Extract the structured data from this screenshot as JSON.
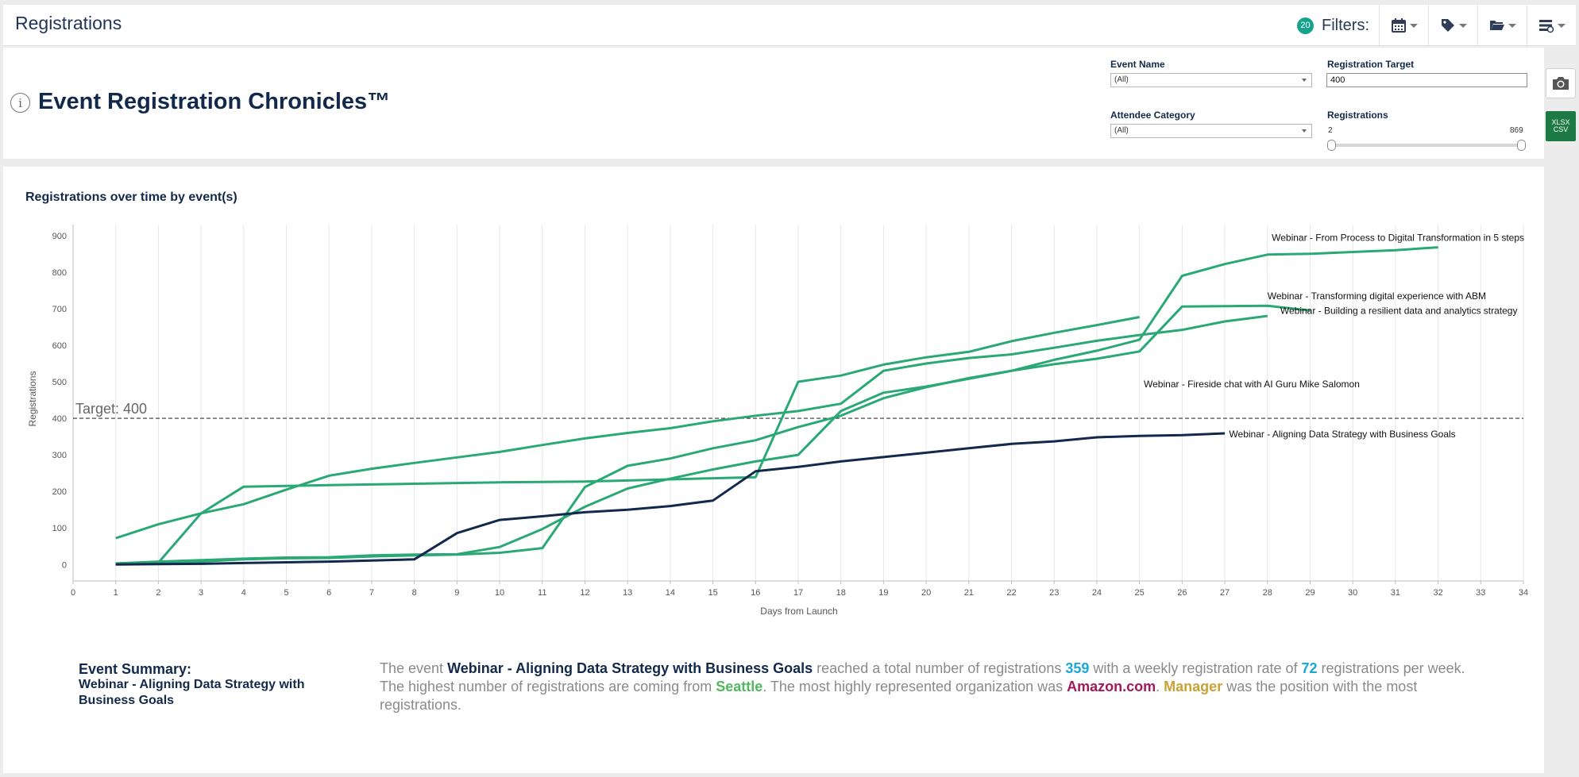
{
  "topbar": {
    "title": "Registrations",
    "filter_count": "20",
    "filters_label": "Filters:",
    "buttons": [
      {
        "name": "calendar-filter-button",
        "icon": "calendar-icon"
      },
      {
        "name": "tag-filter-button",
        "icon": "tag-icon"
      },
      {
        "name": "folder-filter-button",
        "icon": "folder-icon"
      },
      {
        "name": "settings-filter-button",
        "icon": "list-settings-icon"
      }
    ]
  },
  "header": {
    "title": "Event Registration Chronicles™",
    "controls": {
      "event_name_label": "Event Name",
      "event_name_value": "(All)",
      "attendee_category_label": "Attendee Category",
      "attendee_category_value": "(All)",
      "registration_target_label": "Registration Target",
      "registration_target_value": "400",
      "registrations_label": "Registrations",
      "registrations_min": "2",
      "registrations_max": "869"
    },
    "side_buttons": {
      "export_label_1": "XLSX",
      "export_label_2": "CSV"
    }
  },
  "chart_data": {
    "type": "line",
    "title": "Registrations over time by event(s)",
    "xlabel": "Days from Launch",
    "ylabel": "Registrations",
    "xlim": [
      0,
      34
    ],
    "ylim": [
      -45,
      930
    ],
    "xticks": [
      0,
      1,
      2,
      3,
      4,
      5,
      6,
      7,
      8,
      9,
      10,
      11,
      12,
      13,
      14,
      15,
      16,
      17,
      18,
      19,
      20,
      21,
      22,
      23,
      24,
      25,
      26,
      27,
      28,
      29,
      30,
      31,
      32,
      33,
      34
    ],
    "yticks": [
      0,
      100,
      200,
      300,
      400,
      500,
      600,
      700,
      800,
      900
    ],
    "grid": "vertical",
    "target": {
      "value": 400,
      "label": "Target: 400"
    },
    "colors": {
      "green": "#2aa876",
      "navy": "#13294b",
      "target": "#333333"
    },
    "series": [
      {
        "name": "Webinar - From Process to Digital Transformation in 5 steps",
        "color": "#2aa876",
        "x": [
          1,
          2,
          3,
          4,
          5,
          6,
          7,
          8,
          9,
          10,
          11,
          12,
          13,
          14,
          15,
          16,
          17,
          18,
          19,
          20,
          21,
          22,
          23,
          24,
          25,
          26,
          27,
          28,
          29,
          30,
          31,
          32
        ],
        "y": [
          3,
          8,
          12,
          16,
          19,
          20,
          25,
          27,
          28,
          48,
          97,
          158,
          208,
          235,
          260,
          282,
          300,
          420,
          470,
          487,
          508,
          530,
          560,
          585,
          615,
          790,
          822,
          848,
          850,
          855,
          860,
          868
        ]
      },
      {
        "name": "Webinar - Transforming digital experience with ABM",
        "color": "#2aa876",
        "x": [
          1,
          2,
          3,
          4,
          5,
          6,
          7,
          8,
          9,
          10,
          11,
          12,
          13,
          14,
          15,
          16,
          17,
          18,
          19,
          20,
          21,
          22,
          23,
          24,
          25,
          26,
          27,
          28
        ],
        "y": [
          72,
          110,
          140,
          165,
          205,
          243,
          262,
          278,
          293,
          308,
          327,
          345,
          360,
          373,
          392,
          407,
          420,
          440,
          530,
          550,
          565,
          575,
          593,
          612,
          628,
          642,
          665,
          680
        ]
      },
      {
        "name": "Webinar - Building a resilient data and analytics strategy",
        "color": "#2aa876",
        "x": [
          1,
          2,
          3,
          4,
          5,
          6,
          7,
          8,
          9,
          10,
          11,
          12,
          13,
          14,
          15,
          16,
          17,
          18,
          19,
          20,
          21,
          22,
          23,
          24,
          25,
          26,
          27,
          28,
          29
        ],
        "y": [
          2,
          5,
          8,
          14,
          17,
          18,
          22,
          25,
          27,
          32,
          45,
          212,
          270,
          290,
          318,
          340,
          376,
          407,
          455,
          485,
          510,
          530,
          548,
          563,
          583,
          706,
          707,
          708,
          695
        ]
      },
      {
        "name": "Webinar - Fireside chat with AI Guru Mike Salomon",
        "color": "#2aa876",
        "x": [
          1,
          2,
          3,
          4,
          5,
          6,
          7,
          8,
          9,
          10,
          11,
          12,
          13,
          14,
          15,
          16,
          17,
          18,
          19,
          20,
          21,
          22,
          23,
          24,
          25
        ],
        "y": [
          2,
          5,
          140,
          213,
          215,
          217,
          219,
          221,
          223,
          225,
          226,
          227,
          230,
          233,
          236,
          239,
          500,
          517,
          547,
          567,
          582,
          611,
          634,
          655,
          677
        ]
      },
      {
        "name": "Webinar - Aligning Data Strategy with Business Goals",
        "color": "#13294b",
        "x": [
          1,
          2,
          3,
          4,
          5,
          6,
          7,
          8,
          9,
          10,
          11,
          12,
          13,
          14,
          15,
          16,
          17,
          18,
          19,
          20,
          21,
          22,
          23,
          24,
          25,
          26,
          27
        ],
        "y": [
          0,
          1,
          2,
          4,
          6,
          8,
          11,
          14,
          86,
          122,
          132,
          143,
          150,
          160,
          175,
          255,
          267,
          282,
          294,
          306,
          318,
          330,
          337,
          348,
          352,
          354,
          359
        ]
      }
    ],
    "end_labels": [
      {
        "text": "Webinar - From Process to Digital Transformation in 5 steps",
        "x": 28.1,
        "y": 894
      },
      {
        "text": "Webinar - Transforming digital experience with ABM",
        "x": 28.0,
        "y": 735
      },
      {
        "text": "Webinar - Building a resilient data and analytics strategy",
        "x": 28.3,
        "y": 694
      },
      {
        "text": "Webinar - Fireside chat with AI Guru Mike Salomon",
        "x": 25.1,
        "y": 494
      },
      {
        "text": "Webinar - Aligning Data Strategy with Business Goals",
        "x": 27.1,
        "y": 357
      }
    ]
  },
  "summary": {
    "title": "Event Summary:",
    "event": "Webinar - Aligning Data Strategy with Business Goals",
    "t1": "The event ",
    "t2": " reached a total number of registrations ",
    "total": "359",
    "t3": " with a weekly registration rate of ",
    "rate": "72",
    "t4": " registrations per week. The highest number of registrations are coming from ",
    "city": "Seattle",
    "t5": ". The most highly represented organization was ",
    "org": "Amazon.com",
    "t6": ". ",
    "position": "Manager",
    "t7": " was the position with the most registrations."
  }
}
